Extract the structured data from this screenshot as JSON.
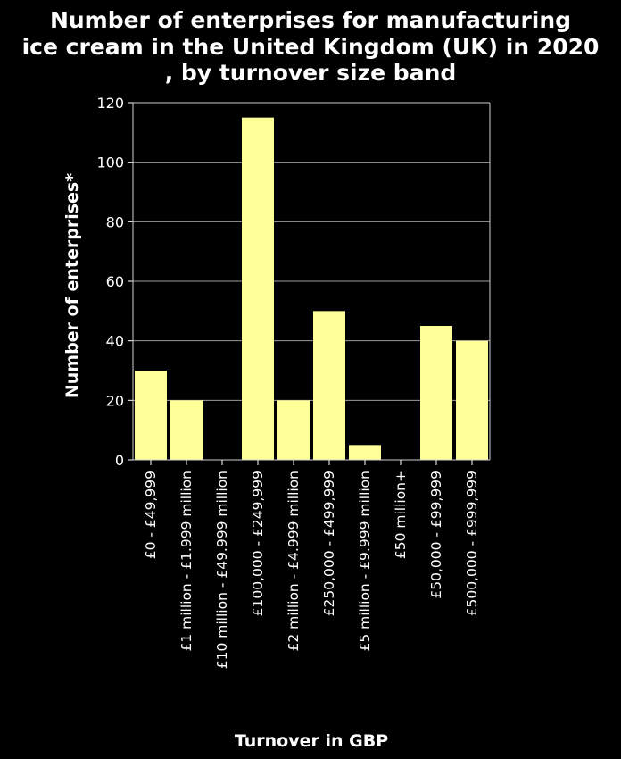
{
  "chart_data": {
    "type": "bar",
    "title": "Number of enterprises for manufacturing ice cream in the United Kingdom (UK) in 2020 , by turnover size band",
    "title_lines": [
      "Number of enterprises for manufacturing",
      "ice cream in the United Kingdom (UK) in 2020",
      ", by turnover size band"
    ],
    "xlabel": "Turnover in GBP",
    "ylabel": "Number of enterprises*",
    "categories": [
      "£0 - £49,999",
      "£1 million - £1.999 million",
      "£10 million - £49.999 million",
      "£100,000 - £249,999",
      "£2 million - £4.999 million",
      "£250,000 - £499,999",
      "£5 million - £9.999 million",
      "£50 million+",
      "£50,000 - £99,999",
      "£500,000 - £999,999"
    ],
    "values": [
      30,
      20,
      0,
      115,
      20,
      50,
      5,
      0,
      45,
      40
    ],
    "ylim": [
      0,
      120
    ],
    "yticks": [
      0,
      20,
      40,
      60,
      80,
      100,
      120
    ],
    "grid": true,
    "colors": {
      "background": "#000000",
      "bar": "#ffff99",
      "grid": "#9a9a9a",
      "text": "#ffffff"
    }
  }
}
